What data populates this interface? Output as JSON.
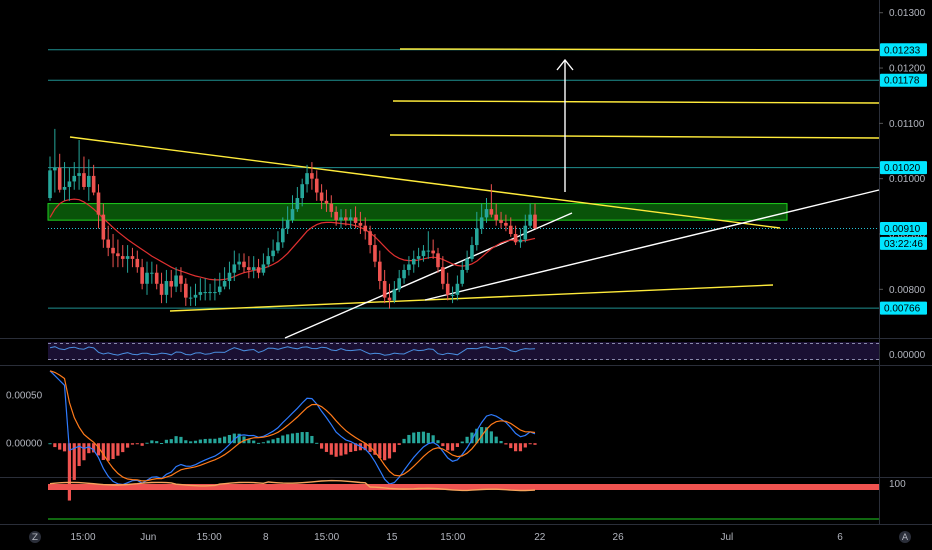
{
  "chart_data": {
    "type": "candlestick",
    "price_axis": {
      "ticks": [
        "0.01300",
        "0.01200",
        "0.01100",
        "0.01000",
        "0.00900",
        "0.00800"
      ],
      "tick_values": [
        0.013,
        0.012,
        0.011,
        0.01,
        0.009,
        0.008
      ],
      "ylim": [
        0.00712,
        0.01323
      ],
      "scale": "linear",
      "price_tags": [
        {
          "label": "0.01233",
          "value": 0.01233,
          "color": "#00e5ff"
        },
        {
          "label": "0.01178",
          "value": 0.01178,
          "color": "#00e5ff"
        },
        {
          "label": "0.01020",
          "value": 0.0102,
          "color": "#00e5ff"
        },
        {
          "label": "0.00910",
          "value": 0.0091,
          "color": "#00e5ff"
        },
        {
          "label": "03:22:46",
          "value": 0.00883,
          "color": "#00e5ff",
          "is_countdown": true
        },
        {
          "label": "0.00766",
          "value": 0.00766,
          "color": "#00e5ff"
        }
      ]
    },
    "time_axis": {
      "labels": [
        "15:00",
        "Jun",
        "15:00",
        "8",
        "15:00",
        "15",
        "15:00",
        "22",
        "26",
        "Jul",
        "6"
      ],
      "positions": [
        0.0,
        0.15,
        0.29,
        0.42,
        0.56,
        0.71,
        0.85,
        1.05,
        1.23,
        1.48,
        1.74
      ],
      "unit": "weeks-from-first-label"
    },
    "horizontal_levels": [
      0.01233,
      0.01178,
      0.0102,
      0.00766
    ],
    "green_zone": [
      0.00925,
      0.00955
    ],
    "candles": {
      "count": 101,
      "open": [
        0.00965,
        0.01015,
        0.0102,
        0.0098,
        0.00985,
        0.00995,
        0.01005,
        0.0101,
        0.00985,
        0.01005,
        0.00975,
        0.00935,
        0.0089,
        0.00875,
        0.00865,
        0.0086,
        0.00855,
        0.0086,
        0.00855,
        0.0084,
        0.0081,
        0.0083,
        0.0083,
        0.0081,
        0.0079,
        0.00815,
        0.00805,
        0.00825,
        0.0081,
        0.00785,
        0.00785,
        0.0079,
        0.00795,
        0.00795,
        0.00795,
        0.00795,
        0.00805,
        0.00815,
        0.0083,
        0.00845,
        0.0085,
        0.0084,
        0.00835,
        0.0084,
        0.0083,
        0.00845,
        0.0086,
        0.0087,
        0.00885,
        0.0091,
        0.00925,
        0.00945,
        0.00965,
        0.0099,
        0.0101,
        0.01,
        0.00975,
        0.0096,
        0.00955,
        0.0094,
        0.00925,
        0.0093,
        0.00925,
        0.0093,
        0.0092,
        0.00915,
        0.00905,
        0.0088,
        0.0085,
        0.00815,
        0.00785,
        0.0078,
        0.008,
        0.0082,
        0.00835,
        0.00845,
        0.00855,
        0.0086,
        0.0087,
        0.0087,
        0.00865,
        0.0084,
        0.0081,
        0.0079,
        0.0079,
        0.0081,
        0.00835,
        0.00855,
        0.0088,
        0.0091,
        0.0093,
        0.00945,
        0.00935,
        0.00925,
        0.0092,
        0.00915,
        0.009,
        0.00885,
        0.0089,
        0.00915,
        0.00935
      ],
      "high": [
        0.0104,
        0.0109,
        0.01045,
        0.0103,
        0.0102,
        0.0103,
        0.0107,
        0.0104,
        0.01035,
        0.01025,
        0.0099,
        0.00955,
        0.00915,
        0.009,
        0.0089,
        0.0088,
        0.0088,
        0.00875,
        0.0087,
        0.00855,
        0.0085,
        0.0085,
        0.00845,
        0.0083,
        0.00835,
        0.00835,
        0.0084,
        0.0084,
        0.0082,
        0.00805,
        0.0081,
        0.0082,
        0.0082,
        0.0081,
        0.0082,
        0.0083,
        0.0084,
        0.0085,
        0.0087,
        0.00865,
        0.00865,
        0.0086,
        0.0086,
        0.00855,
        0.00865,
        0.00875,
        0.0089,
        0.00905,
        0.0093,
        0.0095,
        0.0097,
        0.00985,
        0.01,
        0.01025,
        0.0103,
        0.01015,
        0.0099,
        0.0098,
        0.0097,
        0.0095,
        0.00945,
        0.00945,
        0.00945,
        0.0095,
        0.0094,
        0.0093,
        0.00915,
        0.009,
        0.0087,
        0.00835,
        0.0081,
        0.00815,
        0.00835,
        0.00845,
        0.0086,
        0.0087,
        0.00875,
        0.0088,
        0.00905,
        0.0089,
        0.00875,
        0.0086,
        0.0083,
        0.00805,
        0.00825,
        0.0085,
        0.0087,
        0.00895,
        0.0094,
        0.00955,
        0.00965,
        0.0099,
        0.00955,
        0.0094,
        0.00935,
        0.0093,
        0.00915,
        0.0091,
        0.00935,
        0.00955,
        0.00955
      ],
      "low": [
        0.0096,
        0.00975,
        0.00975,
        0.0096,
        0.0096,
        0.0098,
        0.0098,
        0.0098,
        0.0096,
        0.0097,
        0.0091,
        0.00875,
        0.0086,
        0.0084,
        0.0084,
        0.0084,
        0.0083,
        0.0084,
        0.0083,
        0.008,
        0.0079,
        0.0081,
        0.008,
        0.00775,
        0.00775,
        0.00785,
        0.00795,
        0.00795,
        0.0077,
        0.0077,
        0.0077,
        0.0078,
        0.0078,
        0.0078,
        0.0078,
        0.0079,
        0.008,
        0.008,
        0.00815,
        0.00835,
        0.0083,
        0.0082,
        0.0082,
        0.0082,
        0.00825,
        0.0084,
        0.0085,
        0.00865,
        0.00875,
        0.009,
        0.0092,
        0.0094,
        0.0095,
        0.00975,
        0.0098,
        0.0096,
        0.00945,
        0.0094,
        0.0093,
        0.00915,
        0.0091,
        0.00915,
        0.0091,
        0.0091,
        0.009,
        0.0089,
        0.00865,
        0.0084,
        0.008,
        0.00775,
        0.00765,
        0.00775,
        0.00795,
        0.0081,
        0.00825,
        0.0083,
        0.0084,
        0.0085,
        0.00855,
        0.00855,
        0.0083,
        0.008,
        0.0078,
        0.00775,
        0.0078,
        0.00805,
        0.0083,
        0.0085,
        0.0087,
        0.009,
        0.0092,
        0.0093,
        0.00915,
        0.0091,
        0.00905,
        0.00895,
        0.0088,
        0.00875,
        0.00885,
        0.0091,
        0.0092
      ],
      "close": [
        0.01015,
        0.0102,
        0.0098,
        0.00985,
        0.00995,
        0.01005,
        0.0101,
        0.00985,
        0.01005,
        0.00975,
        0.00935,
        0.0089,
        0.00875,
        0.00865,
        0.0086,
        0.00855,
        0.0086,
        0.00855,
        0.0084,
        0.0081,
        0.0083,
        0.0083,
        0.0081,
        0.0079,
        0.00815,
        0.00805,
        0.00825,
        0.0081,
        0.00785,
        0.00785,
        0.0079,
        0.00795,
        0.00795,
        0.00795,
        0.00795,
        0.00805,
        0.00815,
        0.0083,
        0.00845,
        0.0085,
        0.0084,
        0.00835,
        0.0084,
        0.0083,
        0.00845,
        0.0086,
        0.0087,
        0.00885,
        0.0091,
        0.00925,
        0.00945,
        0.00965,
        0.0099,
        0.0101,
        0.01,
        0.00975,
        0.0096,
        0.00955,
        0.0094,
        0.00925,
        0.0093,
        0.00925,
        0.0093,
        0.0092,
        0.00915,
        0.00905,
        0.0088,
        0.0085,
        0.00815,
        0.00785,
        0.0078,
        0.008,
        0.0082,
        0.00835,
        0.00845,
        0.00855,
        0.0086,
        0.0087,
        0.0087,
        0.00865,
        0.0084,
        0.0081,
        0.0079,
        0.0079,
        0.0081,
        0.00835,
        0.00855,
        0.0088,
        0.0091,
        0.0093,
        0.00945,
        0.00935,
        0.00925,
        0.0092,
        0.00915,
        0.009,
        0.00885,
        0.0089,
        0.00915,
        0.00935,
        0.0091
      ]
    },
    "moving_average": {
      "color": "#e03030",
      "values": [
        0.0093,
        0.00945,
        0.00955,
        0.0096,
        0.00962,
        0.00963,
        0.00962,
        0.00958,
        0.00952,
        0.00945,
        0.00937,
        0.00928,
        0.0092,
        0.00912,
        0.00904,
        0.00897,
        0.0089,
        0.00884,
        0.00878,
        0.00872,
        0.00866,
        0.0086,
        0.00855,
        0.0085,
        0.00845,
        0.0084,
        0.00836,
        0.00833,
        0.0083,
        0.00827,
        0.00824,
        0.00822,
        0.0082,
        0.00818,
        0.00817,
        0.00817,
        0.00818,
        0.0082,
        0.00823,
        0.00827,
        0.0083,
        0.00832,
        0.00834,
        0.00836,
        0.00838,
        0.00841,
        0.00845,
        0.0085,
        0.00857,
        0.00865,
        0.00875,
        0.00885,
        0.00895,
        0.00905,
        0.00912,
        0.00917,
        0.0092,
        0.00921,
        0.00921,
        0.0092,
        0.00919,
        0.00918,
        0.00917,
        0.00915,
        0.00912,
        0.00908,
        0.00902,
        0.00895,
        0.00886,
        0.00877,
        0.00868,
        0.00861,
        0.00856,
        0.00853,
        0.00852,
        0.00852,
        0.00853,
        0.00855,
        0.00857,
        0.00858,
        0.00857,
        0.00854,
        0.0085,
        0.00846,
        0.00843,
        0.00842,
        0.00843,
        0.00846,
        0.00851,
        0.00858,
        0.00866,
        0.00873,
        0.00879,
        0.00884,
        0.00887,
        0.00889,
        0.00889,
        0.00888,
        0.00888,
        0.0089,
        0.00892
      ]
    },
    "rsi_panel": {
      "line_color": "#4a8fe0",
      "ylim": [
        0,
        100
      ],
      "bands": [
        30,
        70
      ],
      "axis_label": "0.00000"
    },
    "macd_panel": {
      "ticks": [
        "0.00050",
        "0.00000"
      ],
      "tick_values": [
        0.0005,
        0.0
      ],
      "ylim": [
        -0.00035,
        0.0008
      ],
      "macd_color": "#2e7bff",
      "signal_color": "#ff7a1a",
      "histogram_pos_color": "#26a69a",
      "histogram_neg_color": "#ef5350"
    },
    "bottom_panel": {
      "tick": "100",
      "tick_value": 100,
      "ylim": [
        0,
        105
      ],
      "line_color": "#f7a35c",
      "level_color": "#ef5350"
    }
  },
  "bottom_bar": {
    "left_button": "Z",
    "right_button": "A"
  }
}
